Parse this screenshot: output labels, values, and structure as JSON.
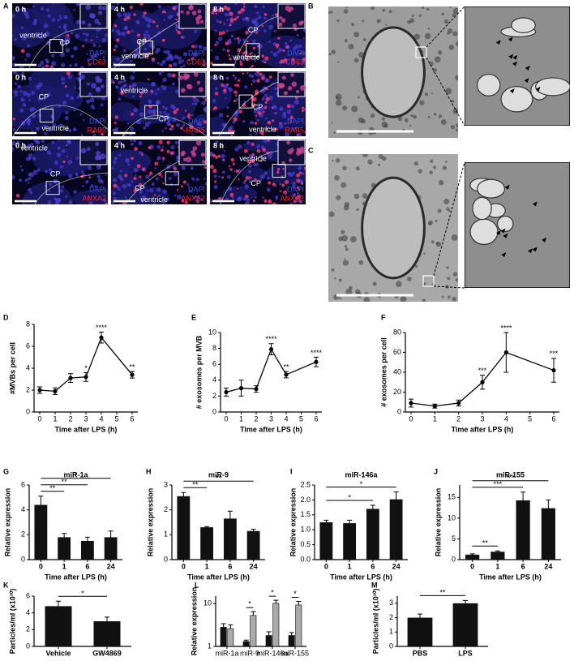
{
  "micrographs": {
    "panel": "A",
    "images": [
      {
        "time": "0 h",
        "labels": [
          "ventricle",
          "CP"
        ],
        "stain": "DAPI",
        "marker": "CD63"
      },
      {
        "time": "4 h",
        "labels": [
          "CP",
          "ventricle"
        ],
        "stain": "DAPI",
        "marker": "CD63"
      },
      {
        "time": "8 h",
        "labels": [
          "CP",
          "ventricle"
        ],
        "stain": "DAPI",
        "marker": "CD63"
      },
      {
        "time": "0 h",
        "labels": [
          "CP",
          "ventricle"
        ],
        "stain": "DAPI",
        "marker": "RAB5"
      },
      {
        "time": "4 h",
        "labels": [
          "ventricle",
          "CP"
        ],
        "stain": "DAPI",
        "marker": "RAB5"
      },
      {
        "time": "8 h",
        "labels": [
          "CP",
          "ventricle"
        ],
        "stain": "DAPI",
        "marker": "RAB5"
      },
      {
        "time": "0 h",
        "labels": [
          "ventricle",
          "CP"
        ],
        "stain": "DAPI",
        "marker": "ANXA2"
      },
      {
        "time": "4 h",
        "labels": [
          "CP",
          "ventricle"
        ],
        "stain": "DAPI",
        "marker": "ANXA2"
      },
      {
        "time": "8 h",
        "labels": [
          "ventricle",
          "CP"
        ],
        "stain": "DAPI",
        "marker": "ANXA2"
      }
    ]
  },
  "electron_micrographs": [
    {
      "panel": "B"
    },
    {
      "panel": "C"
    }
  ],
  "chart_data": [
    {
      "type": "line",
      "panel": "D",
      "ylabel": "#MVBs per cell",
      "xlabel": "Time after LPS (h)",
      "x": [
        0,
        1,
        2,
        3,
        4,
        6
      ],
      "values": [
        2.0,
        1.9,
        3.1,
        3.2,
        6.8,
        3.4
      ],
      "errors": [
        0.3,
        0.3,
        0.4,
        0.4,
        0.5,
        0.3
      ],
      "significance": [
        null,
        null,
        null,
        "*",
        "****",
        "**"
      ],
      "xlim": [
        0,
        6
      ],
      "xticks": [
        0,
        1,
        2,
        3,
        4,
        5,
        6
      ],
      "ylim": [
        0,
        8
      ],
      "yticks": [
        0,
        2,
        4,
        6,
        8
      ],
      "color": "#000000"
    },
    {
      "type": "line",
      "panel": "E",
      "ylabel": "# exosomes per MVB",
      "xlabel": "Time after LPS (h)",
      "x": [
        0,
        1,
        2,
        3,
        4,
        6
      ],
      "values": [
        2.5,
        3.0,
        2.9,
        7.9,
        4.7,
        6.3
      ],
      "errors": [
        0.5,
        1.0,
        0.4,
        0.7,
        0.4,
        0.6
      ],
      "significance": [
        null,
        null,
        null,
        "****",
        "**",
        "****"
      ],
      "xlim": [
        0,
        6
      ],
      "xticks": [
        0,
        1,
        2,
        3,
        4,
        5,
        6
      ],
      "ylim": [
        0,
        10
      ],
      "yticks": [
        0,
        2,
        4,
        6,
        8,
        10
      ],
      "color": "#000000"
    },
    {
      "type": "line",
      "panel": "F",
      "ylabel": "# exosomes per cell",
      "xlabel": "Time after LPS (h)",
      "x": [
        0,
        1,
        2,
        3,
        4,
        6
      ],
      "values": [
        9,
        6,
        9,
        30,
        60,
        42
      ],
      "errors": [
        4,
        2,
        3,
        7,
        20,
        12
      ],
      "significance": [
        null,
        null,
        null,
        "***",
        "****",
        "***"
      ],
      "xlim": [
        0,
        6
      ],
      "xticks": [
        0,
        1,
        2,
        3,
        4,
        5,
        6
      ],
      "ylim": [
        0,
        80
      ],
      "yticks": [
        0,
        20,
        40,
        60,
        80
      ],
      "color": "#000000"
    },
    {
      "type": "bar",
      "panel": "G",
      "title": "miR-1a",
      "ylabel": "Relative expression",
      "xlabel": "Time after LPS (h)",
      "categories": [
        "0",
        "1",
        "6",
        "24"
      ],
      "values": [
        4.4,
        1.8,
        1.5,
        1.8
      ],
      "errors": [
        0.7,
        0.3,
        0.3,
        0.5
      ],
      "brackets": [
        {
          "from": "0",
          "to": "1",
          "label": "**"
        },
        {
          "from": "0",
          "to": "6",
          "label": "**"
        },
        {
          "from": "0",
          "to": "24",
          "label": "*"
        }
      ],
      "ylim": [
        0,
        6
      ],
      "yticks": [
        0,
        2,
        4,
        6
      ],
      "color": "#111111"
    },
    {
      "type": "bar",
      "panel": "H",
      "title": "miR-9",
      "ylabel": "Relative expression",
      "xlabel": "Time after LPS (h)",
      "categories": [
        "0",
        "1",
        "6",
        "24"
      ],
      "values": [
        2.55,
        1.3,
        1.65,
        1.15
      ],
      "errors": [
        0.15,
        0.03,
        0.3,
        0.07
      ],
      "brackets": [
        {
          "from": "0",
          "to": "1",
          "label": "**"
        },
        {
          "from": "0",
          "to": "24",
          "label": "**"
        }
      ],
      "ylim": [
        0,
        3
      ],
      "yticks": [
        0,
        1,
        2,
        3
      ],
      "color": "#111111"
    },
    {
      "type": "bar",
      "panel": "I",
      "title": "miR-146a",
      "ylabel": "Relative expression",
      "xlabel": "Time after LPS (h)",
      "categories": [
        "0",
        "1",
        "6",
        "24"
      ],
      "values": [
        1.25,
        1.22,
        1.7,
        2.02
      ],
      "errors": [
        0.07,
        0.1,
        0.12,
        0.25
      ],
      "brackets": [
        {
          "from": "0",
          "to": "6",
          "label": "*"
        },
        {
          "from": "0",
          "to": "24",
          "label": "*"
        }
      ],
      "ylim": [
        0,
        2.5
      ],
      "yticks": [
        {
          "value": 0,
          "label": "0.0"
        },
        0.5,
        {
          "value": 1,
          "label": "1.0"
        },
        1.5,
        {
          "value": 2,
          "label": "2.0"
        },
        2.5
      ],
      "color": "#111111"
    },
    {
      "type": "bar",
      "panel": "J",
      "title": "miR-155",
      "ylabel": "Relative expression",
      "xlabel": "Time after LPS (h)",
      "categories": [
        "0",
        "1",
        "6",
        "24"
      ],
      "values": [
        1.2,
        1.9,
        14.3,
        12.4
      ],
      "errors": [
        0.2,
        0.2,
        2.0,
        2.0
      ],
      "brackets": [
        {
          "from": "0",
          "to": "1",
          "label": "**"
        },
        {
          "from": "0",
          "to": "6",
          "label": "***"
        },
        {
          "from": "0",
          "to": "24",
          "label": "***"
        }
      ],
      "ylim": [
        0,
        18
      ],
      "yticks": [
        0,
        5,
        10,
        15
      ],
      "color": "#111111"
    },
    {
      "type": "bar",
      "panel": "K",
      "ylabel": "Particles/ml (x10¹⁰)",
      "categories": [
        "Vehicle",
        "GW4869"
      ],
      "values": [
        4.8,
        3.0
      ],
      "errors": [
        0.6,
        0.5
      ],
      "brackets": [
        {
          "from": "Vehicle",
          "to": "GW4869",
          "label": "*"
        }
      ],
      "ylim": [
        0,
        6
      ],
      "yticks": [
        0,
        2,
        4,
        6
      ],
      "color": "#111111"
    },
    {
      "type": "bar",
      "panel": "L",
      "ylabel": "Relative expression",
      "log_scale": true,
      "categories": [
        "miR-1a",
        "miR-9",
        "miR-146a",
        "miR-155"
      ],
      "series": [
        {
          "color": "#111111",
          "values": [
            2.8,
            1.3,
            1.8,
            1.8
          ],
          "errors": [
            0.6,
            0.1,
            0.4,
            0.3
          ]
        },
        {
          "color": "#aaaaaa",
          "values": [
            2.6,
            5.3,
            10.2,
            9.3
          ],
          "errors": [
            0.6,
            1.2,
            1.8,
            2.0
          ]
        }
      ],
      "group_brackets": [
        {
          "category": "miR-9",
          "label": "*"
        },
        {
          "category": "miR-146a",
          "label": "*"
        },
        {
          "category": "miR-155",
          "label": "*"
        }
      ],
      "ylim": [
        1,
        15
      ],
      "yticks": [
        1,
        10
      ]
    },
    {
      "type": "bar",
      "panel": "M",
      "ylabel": "Particles/ml (x10¹⁰)",
      "categories": [
        "PBS",
        "LPS"
      ],
      "values": [
        2.0,
        3.0
      ],
      "errors": [
        0.25,
        0.2
      ],
      "brackets": [
        {
          "from": "PBS",
          "to": "LPS",
          "label": "**"
        }
      ],
      "ylim": [
        0,
        3.5
      ],
      "yticks": [
        0,
        1,
        2,
        3
      ],
      "color": "#111111"
    }
  ]
}
